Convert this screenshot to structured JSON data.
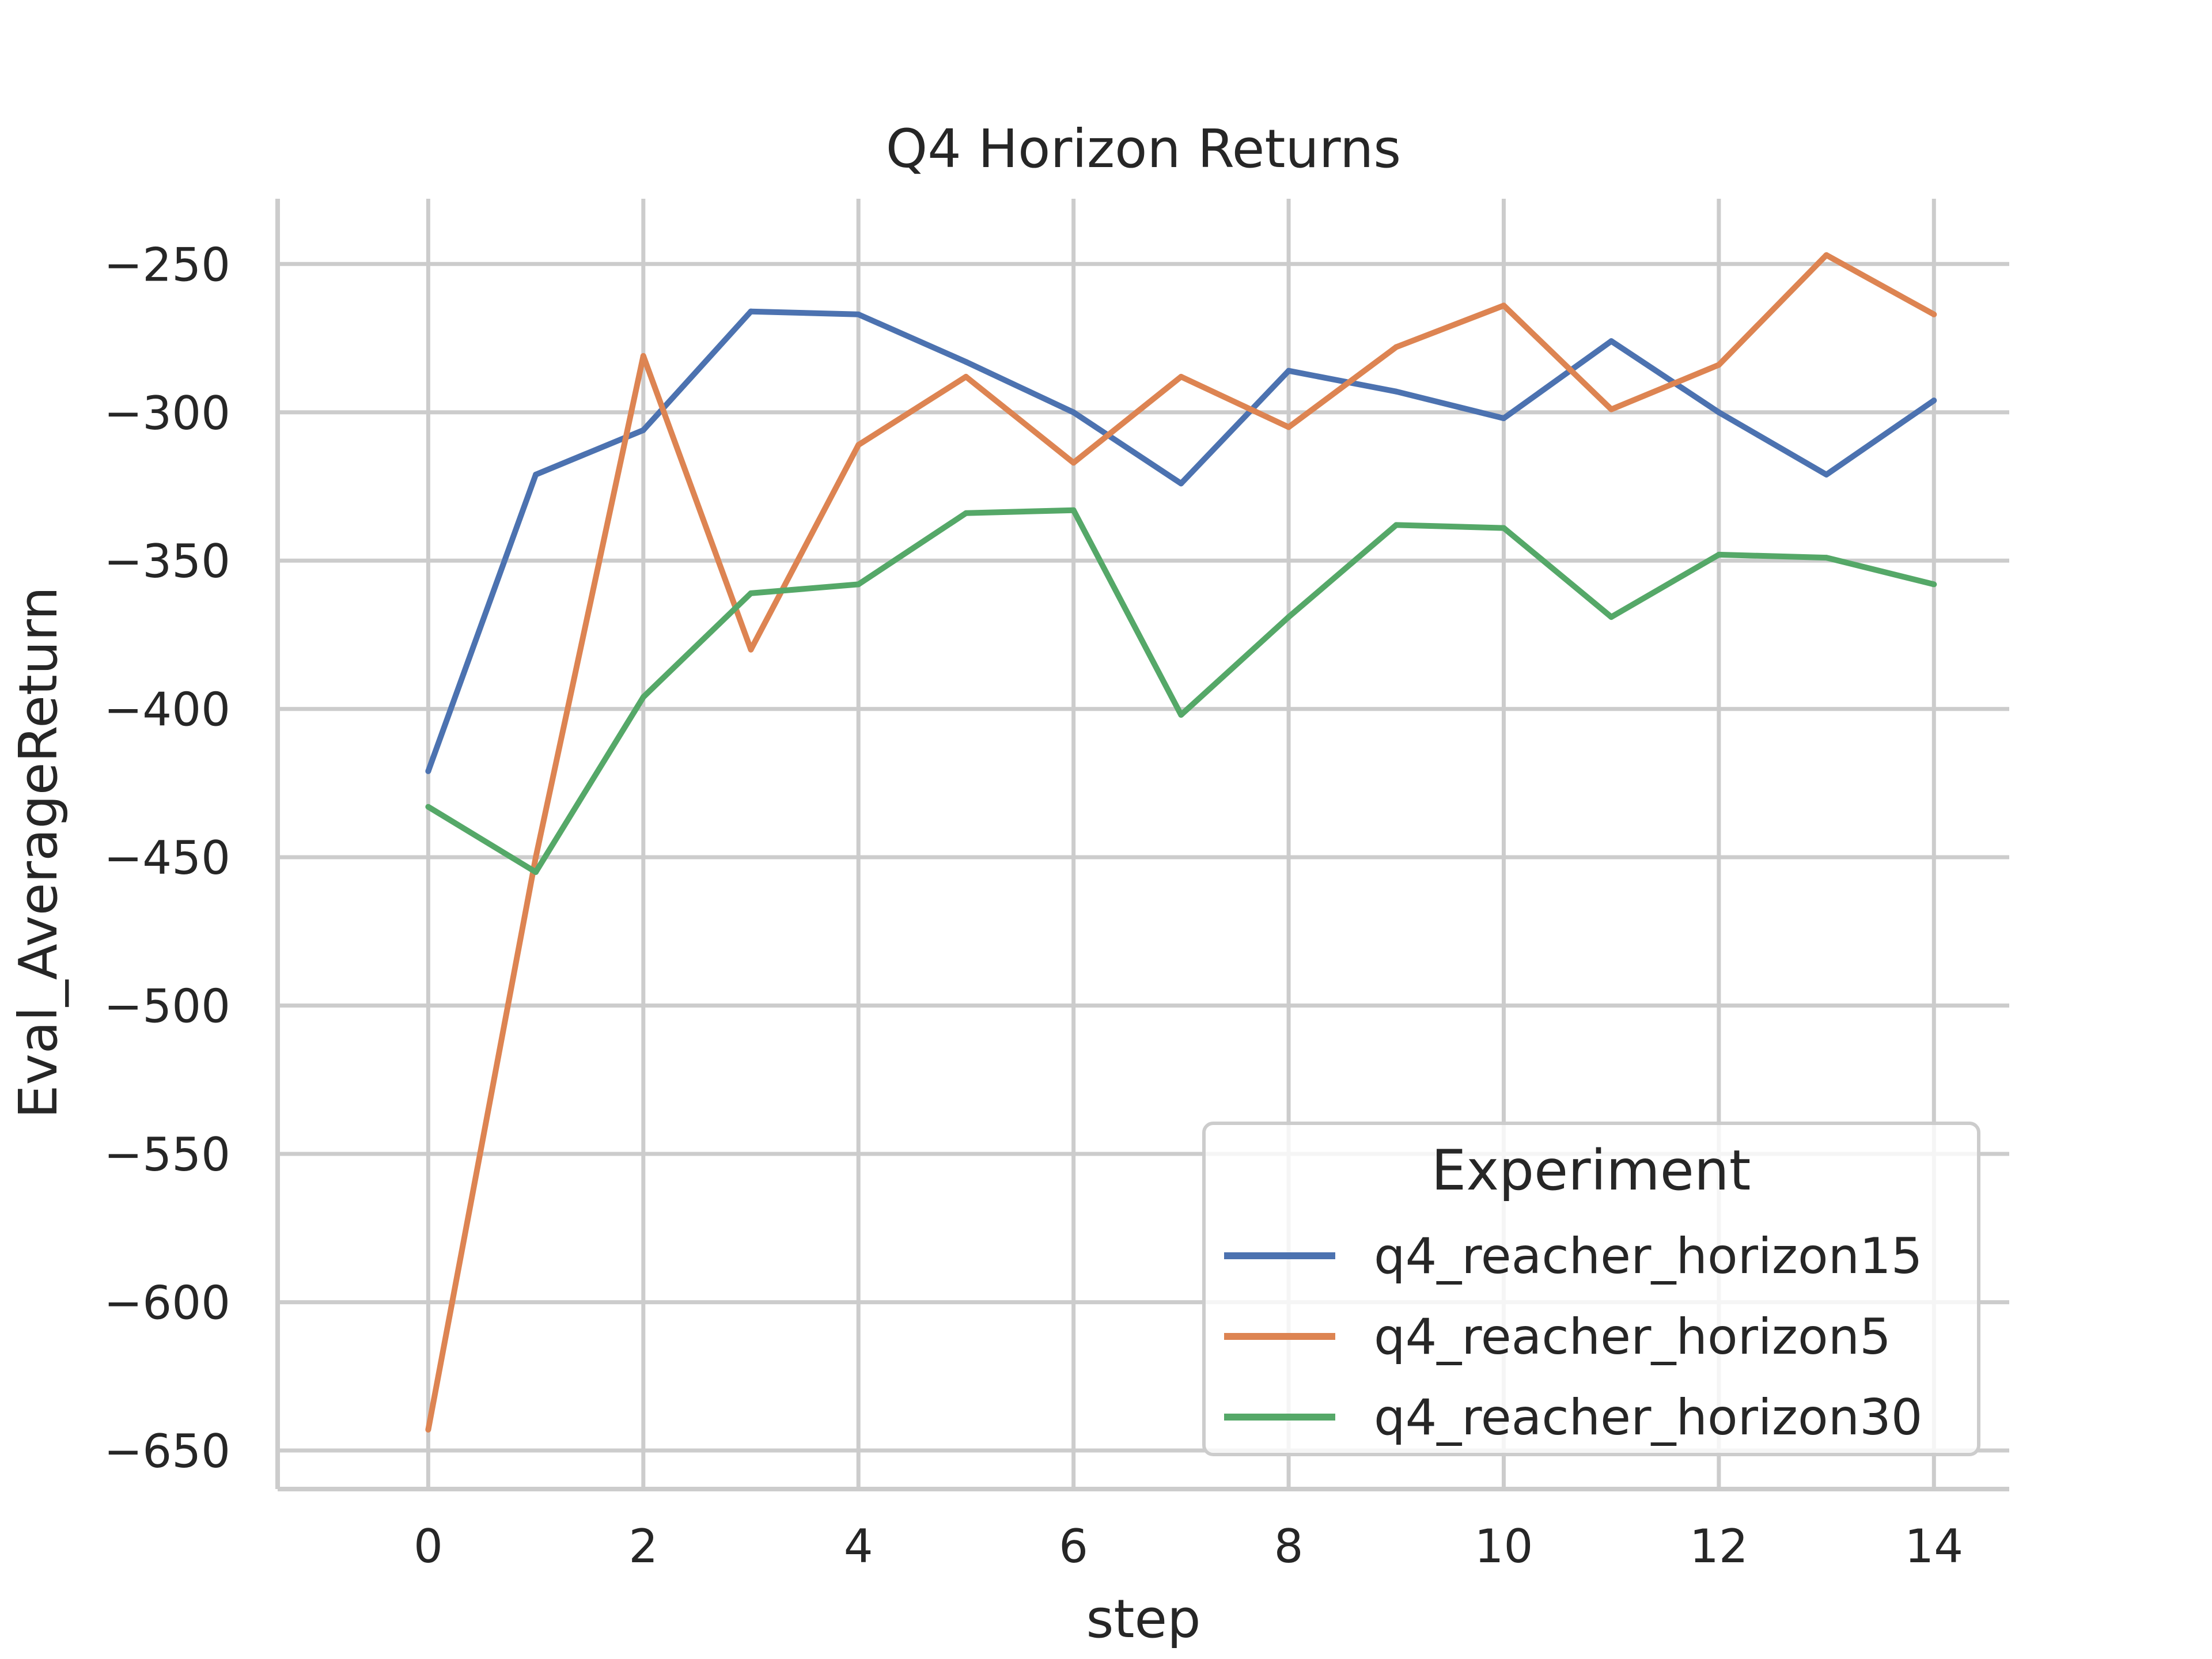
{
  "chart_data": {
    "type": "line",
    "title": "Q4 Horizon Returns",
    "xlabel": "step",
    "ylabel": "Eval_AverageReturn",
    "xlim": [
      -1.4,
      14.7
    ],
    "ylim": [
      -663,
      -228
    ],
    "x_ticks": [
      0,
      2,
      4,
      6,
      8,
      10,
      12,
      14
    ],
    "x_tick_labels": [
      "0",
      "2",
      "4",
      "6",
      "8",
      "10",
      "12",
      "14"
    ],
    "y_ticks": [
      -250,
      -300,
      -350,
      -400,
      -450,
      -500,
      -550,
      -600,
      -650
    ],
    "y_tick_labels": [
      "−250",
      "−300",
      "−350",
      "−400",
      "−450",
      "−500",
      "−550",
      "−600",
      "−650"
    ],
    "grid": true,
    "legend": {
      "title": "Experiment",
      "position": "lower-right"
    },
    "x": [
      0,
      1,
      2,
      3,
      4,
      5,
      6,
      7,
      8,
      9,
      10,
      11,
      12,
      13,
      14
    ],
    "series": [
      {
        "name": "q4_reacher_horizon15",
        "color": "#4c72b0",
        "values": [
          -421,
          -321,
          -306,
          -266,
          -267,
          -283,
          -300,
          -324,
          -286,
          -293,
          -302,
          -276,
          -300,
          -321,
          -296
        ]
      },
      {
        "name": "q4_reacher_horizon5",
        "color": "#dd8452",
        "values": [
          -643,
          -450,
          -281,
          -380,
          -311,
          -288,
          -317,
          -288,
          -305,
          -278,
          -264,
          -299,
          -284,
          -247,
          -267
        ]
      },
      {
        "name": "q4_reacher_horizon30",
        "color": "#55a868",
        "values": [
          -433,
          -455,
          -396,
          -361,
          -358,
          -334,
          -333,
          -402,
          -369,
          -338,
          -339,
          -369,
          -348,
          -349,
          -358
        ]
      }
    ]
  }
}
